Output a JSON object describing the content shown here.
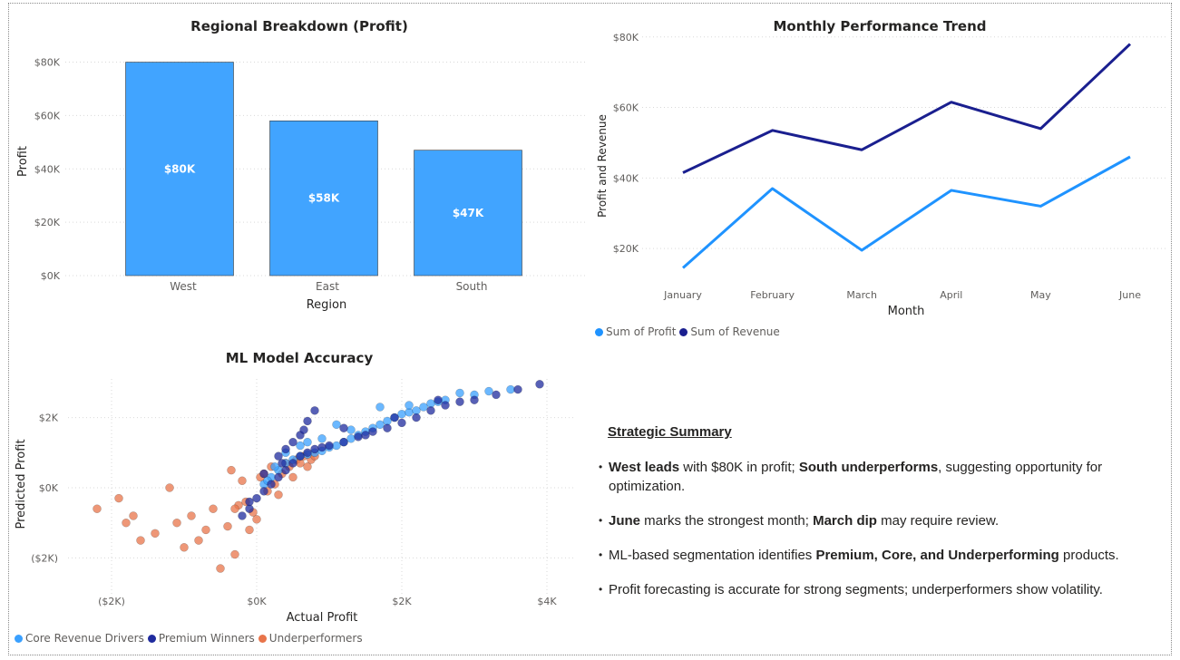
{
  "colors": {
    "bar": "#41a4ff",
    "profit": "#1f93ff",
    "revenue": "#1a1f8f",
    "core": "#3aa0ff",
    "premium": "#1f2b9e",
    "under": "#e8744a",
    "grid": "#d9d9d9",
    "tick": "#605e5c"
  },
  "chart_data": [
    {
      "type": "bar",
      "title": "Regional Breakdown (Profit)",
      "categories": [
        "West",
        "East",
        "South"
      ],
      "values": [
        80000,
        58000,
        47000
      ],
      "data_labels": [
        "$80K",
        "$58K",
        "$47K"
      ],
      "xlabel": "Region",
      "ylabel": "Profit",
      "ylim": [
        0,
        88000
      ],
      "yticks": [
        0,
        20000,
        40000,
        60000,
        80000
      ],
      "ytick_labels": [
        "$0K",
        "$20K",
        "$40K",
        "$60K",
        "$80K"
      ]
    },
    {
      "type": "line",
      "title": "Monthly Performance Trend",
      "categories": [
        "January",
        "February",
        "March",
        "April",
        "May",
        "June"
      ],
      "series": [
        {
          "name": "Sum of Profit",
          "values": [
            14500,
            37000,
            19500,
            36500,
            32000,
            46000
          ]
        },
        {
          "name": "Sum of Revenue",
          "values": [
            41500,
            53500,
            48000,
            61500,
            54000,
            78000
          ]
        }
      ],
      "xlabel": "Month",
      "ylabel": "Profit and Revenue",
      "ylim": [
        10000,
        82000
      ],
      "yticks": [
        20000,
        40000,
        60000,
        80000
      ],
      "ytick_labels": [
        "$20K",
        "$40K",
        "$60K",
        "$80K"
      ]
    },
    {
      "type": "scatter",
      "title": "ML Model Accuracy",
      "xlabel": "Actual Profit",
      "ylabel": "Predicted Profit",
      "xlim": [
        -2600,
        4400
      ],
      "ylim": [
        -3100,
        3100
      ],
      "xticks": [
        -2000,
        0,
        2000,
        4000
      ],
      "xtick_labels": [
        "($2K)",
        "$0K",
        "$2K",
        "$4K"
      ],
      "yticks": [
        -2000,
        0,
        2000
      ],
      "ytick_labels": [
        "($2K)",
        "$0K",
        "$2K"
      ],
      "series": [
        {
          "name": "Core Revenue Drivers",
          "points": [
            [
              100,
              100
            ],
            [
              200,
              300
            ],
            [
              300,
              500
            ],
            [
              400,
              700
            ],
            [
              500,
              800
            ],
            [
              600,
              900
            ],
            [
              700,
              950
            ],
            [
              800,
              1000
            ],
            [
              900,
              1050
            ],
            [
              1000,
              1150
            ],
            [
              1100,
              1200
            ],
            [
              1200,
              1300
            ],
            [
              1300,
              1400
            ],
            [
              1400,
              1500
            ],
            [
              1500,
              1600
            ],
            [
              1600,
              1700
            ],
            [
              1700,
              1800
            ],
            [
              1800,
              1900
            ],
            [
              1900,
              2000
            ],
            [
              2000,
              2100
            ],
            [
              2100,
              2150
            ],
            [
              2200,
              2200
            ],
            [
              2300,
              2300
            ],
            [
              2400,
              2400
            ],
            [
              2500,
              2450
            ],
            [
              2600,
              2500
            ],
            [
              2800,
              2700
            ],
            [
              3000,
              2650
            ],
            [
              3200,
              2750
            ],
            [
              3500,
              2800
            ],
            [
              1700,
              2300
            ],
            [
              1100,
              1800
            ],
            [
              700,
              1300
            ],
            [
              400,
              1000
            ],
            [
              250,
              600
            ],
            [
              150,
              200
            ],
            [
              600,
              1200
            ],
            [
              900,
              1400
            ],
            [
              1300,
              1650
            ],
            [
              2100,
              2350
            ]
          ]
        },
        {
          "name": "Premium Winners",
          "points": [
            [
              -200,
              -800
            ],
            [
              -100,
              -600
            ],
            [
              0,
              -300
            ],
            [
              100,
              -100
            ],
            [
              200,
              100
            ],
            [
              300,
              300
            ],
            [
              400,
              500
            ],
            [
              500,
              700
            ],
            [
              600,
              900
            ],
            [
              700,
              1000
            ],
            [
              800,
              1100
            ],
            [
              900,
              1150
            ],
            [
              1000,
              1200
            ],
            [
              1200,
              1300
            ],
            [
              1400,
              1450
            ],
            [
              1600,
              1600
            ],
            [
              1800,
              1700
            ],
            [
              2000,
              1850
            ],
            [
              2200,
              2000
            ],
            [
              2400,
              2200
            ],
            [
              2600,
              2350
            ],
            [
              2800,
              2450
            ],
            [
              3000,
              2500
            ],
            [
              3300,
              2650
            ],
            [
              3600,
              2800
            ],
            [
              3900,
              2950
            ],
            [
              400,
              1100
            ],
            [
              600,
              1500
            ],
            [
              700,
              1900
            ],
            [
              800,
              2200
            ],
            [
              300,
              900
            ],
            [
              500,
              1300
            ],
            [
              650,
              1650
            ],
            [
              1200,
              1700
            ],
            [
              1500,
              1500
            ],
            [
              1900,
              2000
            ],
            [
              2500,
              2500
            ],
            [
              100,
              400
            ],
            [
              -100,
              -400
            ],
            [
              350,
              700
            ]
          ]
        },
        {
          "name": "Underperformers",
          "points": [
            [
              -2200,
              -600
            ],
            [
              -1900,
              -300
            ],
            [
              -1800,
              -1000
            ],
            [
              -1700,
              -800
            ],
            [
              -1600,
              -1500
            ],
            [
              -1400,
              -1300
            ],
            [
              -1200,
              0
            ],
            [
              -1100,
              -1000
            ],
            [
              -1000,
              -1700
            ],
            [
              -900,
              -800
            ],
            [
              -800,
              -1500
            ],
            [
              -700,
              -1200
            ],
            [
              -600,
              -600
            ],
            [
              -500,
              -2300
            ],
            [
              -400,
              -1100
            ],
            [
              -350,
              500
            ],
            [
              -300,
              -1900
            ],
            [
              -250,
              -500
            ],
            [
              -200,
              200
            ],
            [
              -150,
              -400
            ],
            [
              -100,
              -1200
            ],
            [
              -50,
              -700
            ],
            [
              0,
              -900
            ],
            [
              50,
              300
            ],
            [
              100,
              400
            ],
            [
              150,
              -100
            ],
            [
              200,
              600
            ],
            [
              250,
              100
            ],
            [
              300,
              -200
            ],
            [
              350,
              400
            ],
            [
              400,
              700
            ],
            [
              450,
              600
            ],
            [
              500,
              300
            ],
            [
              550,
              800
            ],
            [
              600,
              700
            ],
            [
              650,
              900
            ],
            [
              700,
              600
            ],
            [
              750,
              800
            ],
            [
              800,
              900
            ],
            [
              -300,
              -600
            ]
          ]
        }
      ]
    }
  ],
  "summary": {
    "title": "Strategic Summary",
    "b1": {
      "s1": "West leads",
      "t1": " with $80K in profit; ",
      "s2": "South underperforms",
      "t2": ", suggesting opportunity for optimization."
    },
    "b2": {
      "s1": "June",
      "t1": " marks the strongest month; ",
      "s2": "March dip",
      "t2": " may require review."
    },
    "b3": {
      "t0": "ML-based segmentation identifies ",
      "s1": "Premium, Core, and Underperforming",
      "t1": " products."
    },
    "b4": {
      "t0": "Profit forecasting is accurate for strong segments; underperformers show volatility."
    }
  }
}
